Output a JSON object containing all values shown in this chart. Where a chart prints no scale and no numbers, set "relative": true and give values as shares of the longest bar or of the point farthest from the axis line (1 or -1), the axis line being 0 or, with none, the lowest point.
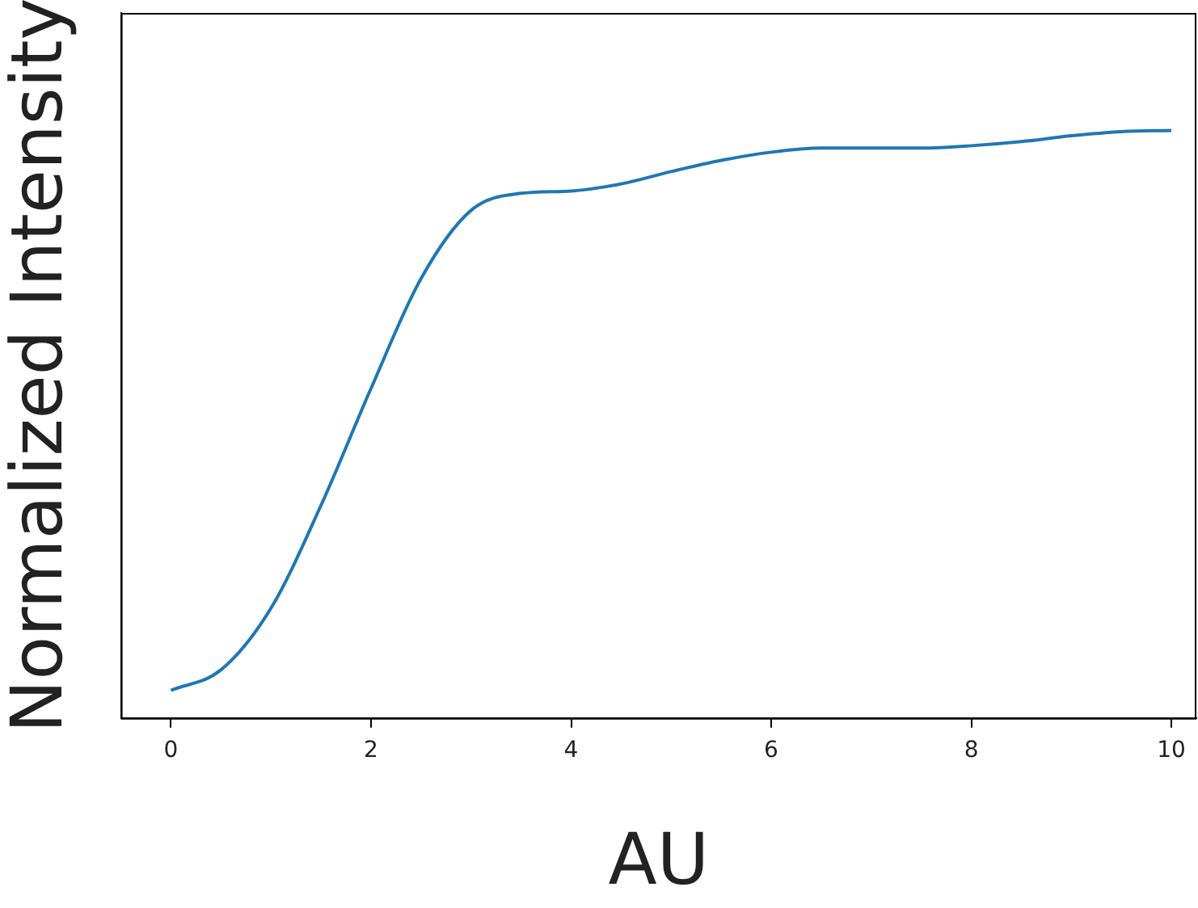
{
  "chart_data": {
    "type": "line",
    "xlabel": "AU",
    "ylabel": "Normalized Intensity",
    "relative": true,
    "x": [
      0,
      0.5,
      1,
      1.5,
      2,
      2.5,
      3,
      3.5,
      4,
      4.5,
      5,
      5.5,
      6,
      6.5,
      7,
      7.5,
      8,
      8.5,
      9,
      9.5,
      10
    ],
    "series": [
      {
        "color": "#1f77b4",
        "values": [
          0.047,
          0.082,
          0.187,
          0.362,
          0.561,
          0.748,
          0.864,
          0.893,
          0.897,
          0.909,
          0.93,
          0.949,
          0.963,
          0.97,
          0.97,
          0.97,
          0.974,
          0.981,
          0.991,
          0.998,
          1.0
        ]
      }
    ],
    "xlim": [
      -0.5,
      10.25
    ],
    "xticks": [
      0,
      2,
      4,
      6,
      8,
      10
    ],
    "grid": false,
    "legend": false,
    "marker": "none",
    "line_style": "solid"
  }
}
